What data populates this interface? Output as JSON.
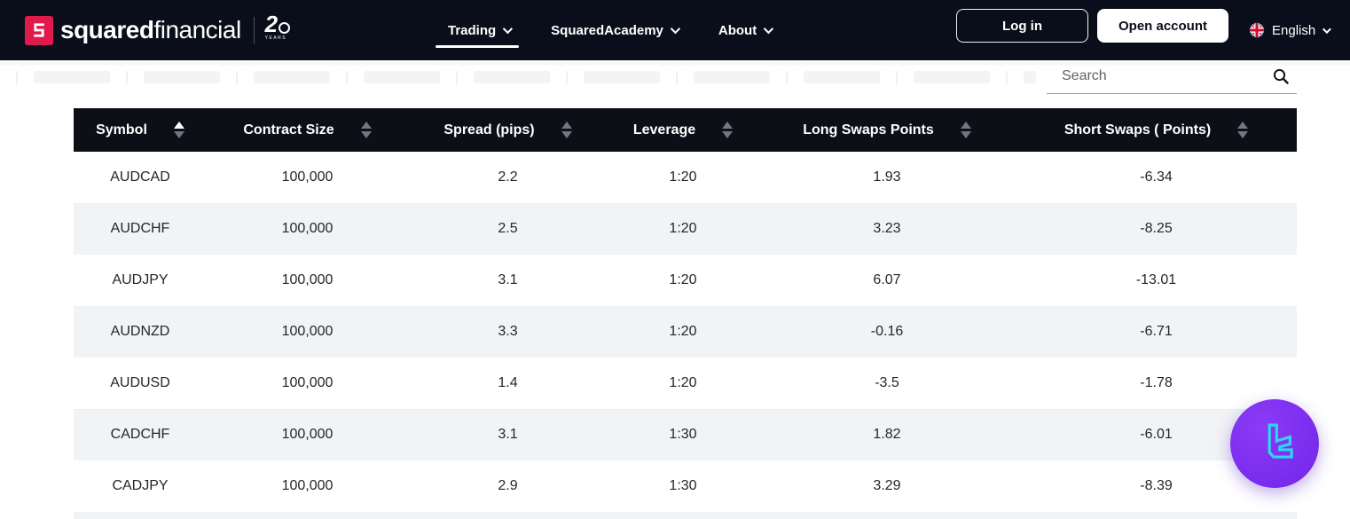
{
  "brand": {
    "logo_mark": "S",
    "name_bold": "squared",
    "name_light": "financial",
    "anniversary_digit": "2",
    "anniversary_label": "years"
  },
  "nav": {
    "items": [
      {
        "label": "Trading",
        "active": true
      },
      {
        "label": "SquaredAcademy",
        "active": false
      },
      {
        "label": "About",
        "active": false
      }
    ]
  },
  "actions": {
    "login": "Log in",
    "open_account": "Open account",
    "language": "English"
  },
  "search": {
    "placeholder": "Search"
  },
  "table": {
    "columns": [
      {
        "label": "Symbol",
        "sort": "asc"
      },
      {
        "label": "Contract Size",
        "sort": "none"
      },
      {
        "label": "Spread (pips)",
        "sort": "none"
      },
      {
        "label": "Leverage",
        "sort": "none"
      },
      {
        "label": "Long Swaps Points",
        "sort": "none"
      },
      {
        "label": "Short Swaps ( Points)",
        "sort": "none"
      }
    ],
    "rows": [
      [
        "AUDCAD",
        "100,000",
        "2.2",
        "1:20",
        "1.93",
        "-6.34"
      ],
      [
        "AUDCHF",
        "100,000",
        "2.5",
        "1:20",
        "3.23",
        "-8.25"
      ],
      [
        "AUDJPY",
        "100,000",
        "3.1",
        "1:20",
        "6.07",
        "-13.01"
      ],
      [
        "AUDNZD",
        "100,000",
        "3.3",
        "1:20",
        "-0.16",
        "-6.71"
      ],
      [
        "AUDUSD",
        "100,000",
        "1.4",
        "1:20",
        "-3.5",
        "-1.78"
      ],
      [
        "CADCHF",
        "100,000",
        "3.1",
        "1:30",
        "1.82",
        "-6.01"
      ],
      [
        "CADJPY",
        "100,000",
        "2.9",
        "1:30",
        "3.29",
        "-8.39"
      ]
    ]
  },
  "colors": {
    "navbar_bg": "#0a0e1a",
    "accent_red": "#e01a4b",
    "table_header_bg": "#0c0f16",
    "row_alt": "#f1f3f5",
    "widget_purple": "#7b2cf0",
    "widget_cyan": "#2ed6f7"
  }
}
